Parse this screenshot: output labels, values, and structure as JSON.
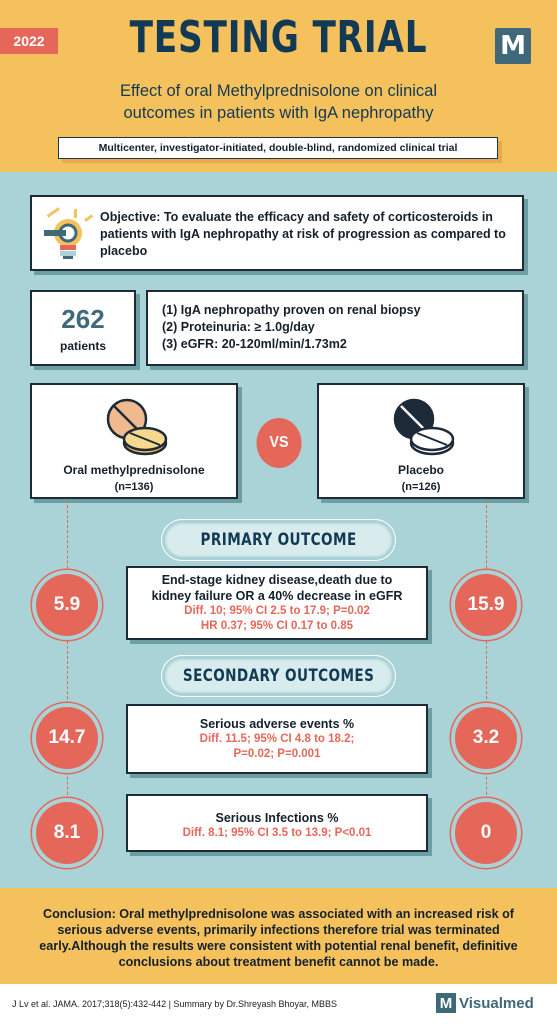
{
  "header": {
    "year": "2022",
    "title": "TESTING TRIAL",
    "logo_letter": "M",
    "subtitle_line1": "Effect of oral Methylprednisolone on clinical",
    "subtitle_line2": "outcomes in patients with IgA nephropathy",
    "design": "Multicenter, investigator-initiated, double-blind, randomized clinical trial"
  },
  "objective": {
    "icon": "lightbulb-icon",
    "text": "Objective: To evaluate the efficacy and safety of corticosteroids in patients with IgA nephropathy at risk of progression as compared to placebo"
  },
  "patients": {
    "count": "262",
    "label": "patients",
    "criteria": [
      "(1) IgA nephropathy proven on renal biopsy",
      "(2) Proteinuria: ≥ 1.0g/day",
      "(3) eGFR: 20-120ml/min/1.73m2"
    ]
  },
  "arms": {
    "left": {
      "name": "Oral methylprednisolone",
      "n": "(n=136)",
      "icon": "pills-icon"
    },
    "vs": "VS",
    "right": {
      "name": "Placebo",
      "n": "(n=126)",
      "icon": "pills-icon"
    }
  },
  "primary": {
    "section_title": "PRIMARY OUTCOME",
    "left_value": "5.9",
    "right_value": "15.9",
    "title_line1": "End-stage kidney disease,death due to",
    "title_line2": "kidney failure OR a 40% decrease in eGFR",
    "stat1": "Diff. 10; 95% CI 2.5 to 17.9; P=0.02",
    "stat2": "HR 0.37; 95% CI 0.17 to 0.85"
  },
  "secondary": {
    "section_title": "SECONDARY OUTCOMES",
    "items": [
      {
        "left_value": "14.7",
        "right_value": "3.2",
        "title": "Serious adverse events %",
        "stat1": "Diff. 11.5; 95% CI 4.8 to 18.2;",
        "stat2": "P=0.02; P=0.001"
      },
      {
        "left_value": "8.1",
        "right_value": "0",
        "title": "Serious Infections %",
        "stat1": "Diff. 8.1; 95% CI 3.5 to 13.9; P<0.01"
      }
    ]
  },
  "conclusion": "Conclusion: Oral methylprednisolone was associated with an increased risk of serious adverse events, primarily infections therefore trial was terminated early.Although the results were consistent with potential renal benefit, definitive conclusions about treatment benefit cannot be made.",
  "footer": {
    "citation": "J Lv et al. JAMA. 2017;318(5):432-442 | Summary by Dr.Shreyash Bhoyar, MBBS",
    "brand_letter": "M",
    "brand_name": "Visualmed"
  },
  "colors": {
    "header_bg": "#f5c15c",
    "body_bg": "#a9d3d6",
    "accent_red": "#e5675a",
    "navy": "#133a55",
    "teal": "#3f6878"
  }
}
